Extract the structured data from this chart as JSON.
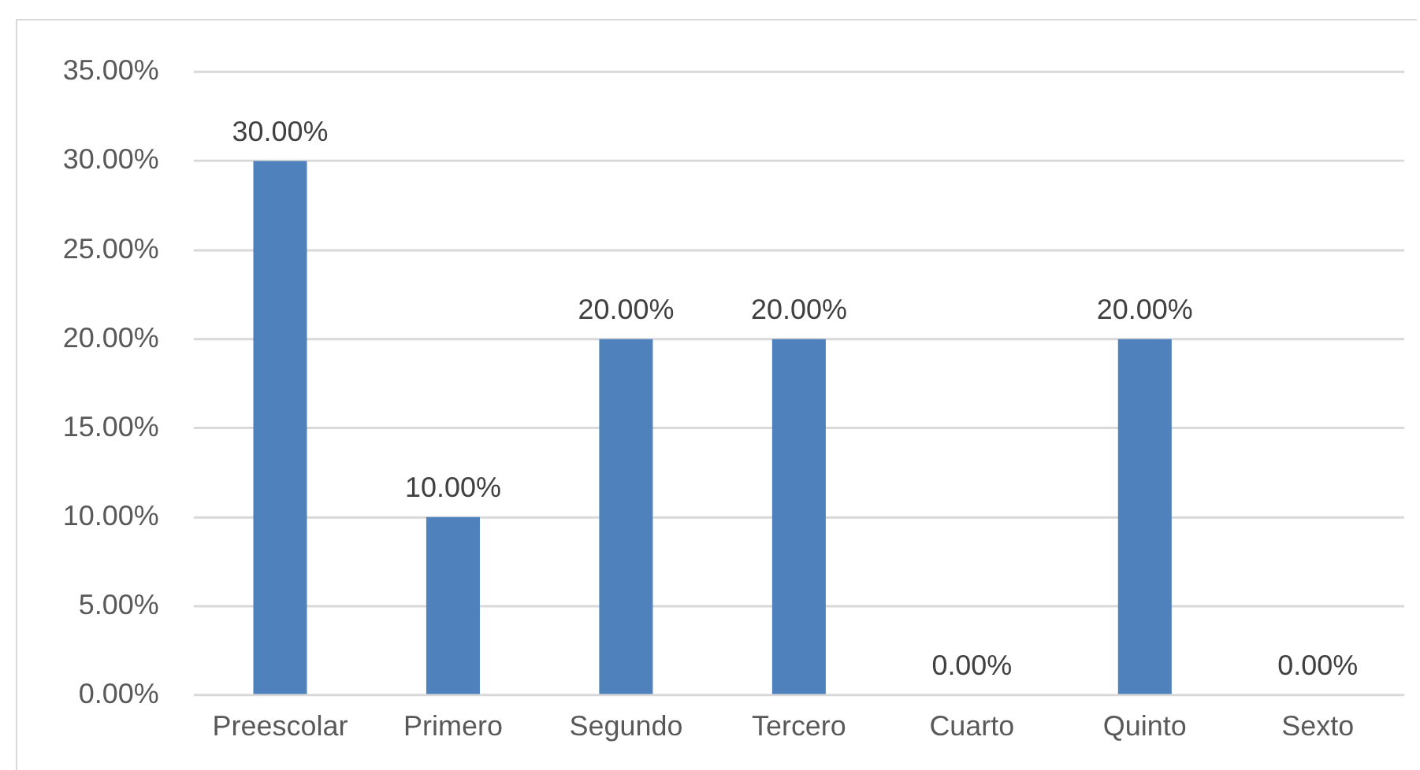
{
  "chart_data": {
    "type": "bar",
    "categories": [
      "Preescolar",
      "Primero",
      "Segundo",
      "Tercero",
      "Cuarto",
      "Quinto",
      "Sexto"
    ],
    "values": [
      30,
      10,
      20,
      20,
      0,
      20,
      0
    ],
    "value_labels": [
      "30.00%",
      "10.00%",
      "20.00%",
      "20.00%",
      "0.00%",
      "20.00%",
      "0.00%"
    ],
    "color": "#4f81bd",
    "ylim": [
      0,
      35
    ],
    "yticks": [
      {
        "value": 0,
        "label": "0.00%"
      },
      {
        "value": 5,
        "label": "5.00%"
      },
      {
        "value": 10,
        "label": "10.00%"
      },
      {
        "value": 15,
        "label": "15.00%"
      },
      {
        "value": 20,
        "label": "20.00%"
      },
      {
        "value": 25,
        "label": "25.00%"
      },
      {
        "value": 30,
        "label": "30.00%"
      },
      {
        "value": 35,
        "label": "35.00%"
      }
    ],
    "grid": "y"
  }
}
